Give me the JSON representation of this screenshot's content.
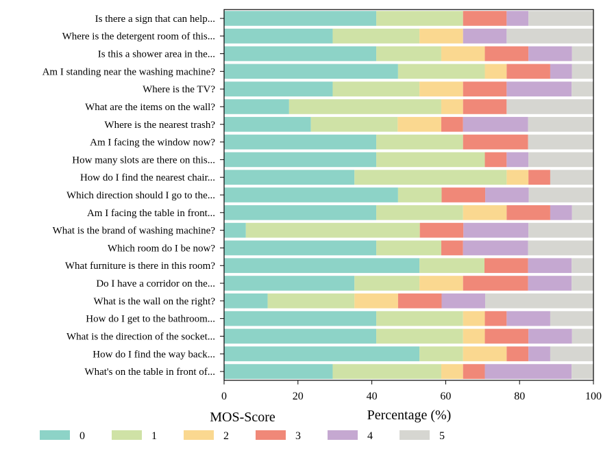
{
  "chart_data": {
    "type": "bar",
    "orientation": "horizontal",
    "stacked": true,
    "categories": [
      "Is there a sign that can help...",
      "Where is the detergent room of this...",
      "Is this a shower area in the...",
      "Am I standing near the washing machine?",
      "Where is the TV?",
      "What are the items on the wall?",
      "Where is the nearest trash?",
      "Am I facing the window now?",
      "How many slots are there on this...",
      "How do I find the nearest chair...",
      "Which direction should I go to the...",
      "Am I facing the table in front...",
      "What is the brand of washing machine?",
      "Which room do I be now?",
      "What furniture is there in this room?",
      "Do I have a corridor on the...",
      "What is the wall on the right?",
      "How do I get to the bathroom...",
      "What is the direction of the socket...",
      "How do I find the way back...",
      "What's on the table in front of..."
    ],
    "series": [
      {
        "name": "0",
        "color": "#8dd3c7",
        "values": [
          41.2,
          29.4,
          41.2,
          47.1,
          29.4,
          17.6,
          23.5,
          41.2,
          41.2,
          35.3,
          47.1,
          41.2,
          5.9,
          41.2,
          52.9,
          35.3,
          11.8,
          41.2,
          41.2,
          52.9,
          29.4
        ]
      },
      {
        "name": "1",
        "color": "#cfe2a6",
        "values": [
          23.5,
          23.5,
          17.6,
          23.5,
          23.5,
          41.2,
          23.5,
          23.5,
          29.4,
          41.2,
          11.8,
          23.5,
          47.1,
          17.6,
          17.6,
          17.6,
          23.5,
          23.5,
          23.5,
          11.8,
          29.4
        ]
      },
      {
        "name": "2",
        "color": "#fad890",
        "values": [
          0,
          11.8,
          11.8,
          5.9,
          11.8,
          5.9,
          11.8,
          0,
          0,
          5.9,
          0,
          11.8,
          0,
          0,
          0,
          11.8,
          11.8,
          5.9,
          5.9,
          11.8,
          5.9
        ]
      },
      {
        "name": "3",
        "color": "#f08878",
        "values": [
          11.8,
          0,
          11.8,
          11.8,
          11.8,
          11.8,
          5.9,
          17.6,
          5.9,
          5.9,
          11.8,
          11.8,
          11.8,
          5.9,
          11.8,
          17.6,
          11.8,
          5.9,
          11.8,
          5.9,
          5.9
        ]
      },
      {
        "name": "4",
        "color": "#c5a8d1",
        "values": [
          5.9,
          11.8,
          11.8,
          5.9,
          17.6,
          0,
          17.6,
          0,
          5.9,
          0,
          11.8,
          5.9,
          17.6,
          17.6,
          11.8,
          11.8,
          11.8,
          11.8,
          11.8,
          5.9,
          23.5
        ]
      },
      {
        "name": "5",
        "color": "#d6d6d1",
        "values": [
          17.6,
          23.5,
          5.8,
          5.8,
          5.9,
          23.5,
          17.7,
          17.7,
          17.6,
          11.7,
          17.5,
          5.8,
          17.6,
          17.7,
          5.9,
          5.9,
          29.3,
          11.7,
          5.9,
          11.8,
          5.9
        ]
      }
    ],
    "xlabel": "Percentage (%)",
    "ylabel": "",
    "xlim": [
      0,
      100
    ],
    "xticks": [
      "0",
      "20",
      "40",
      "60",
      "80",
      "100"
    ],
    "grid": false,
    "legend": {
      "title": "MOS-Score",
      "placement": "bottom",
      "entries": [
        "0",
        "1",
        "2",
        "3",
        "4",
        "5"
      ]
    }
  }
}
